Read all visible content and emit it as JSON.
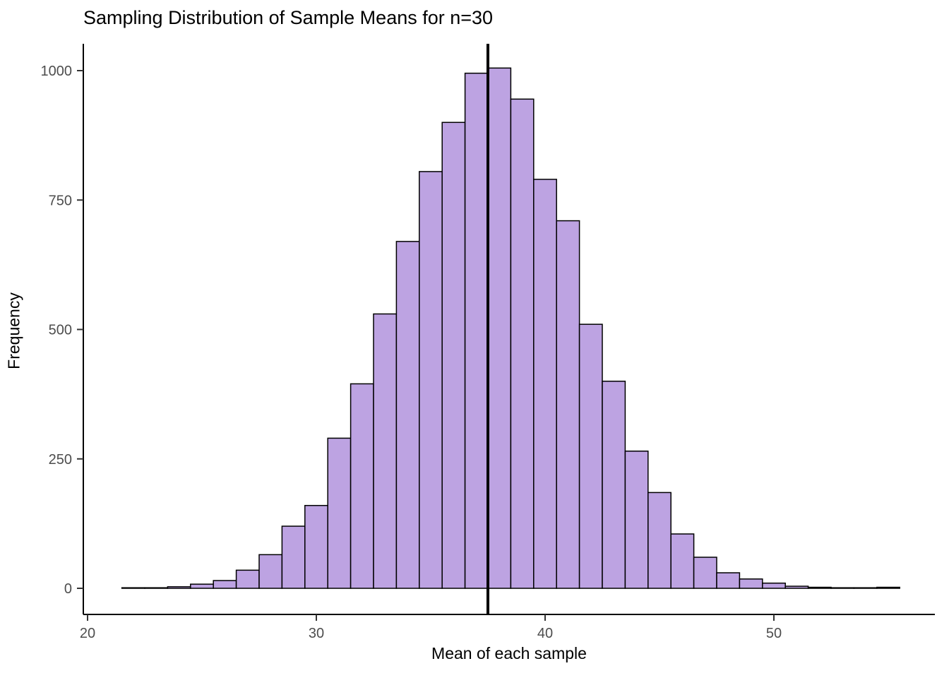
{
  "chart_data": {
    "type": "bar",
    "subtype": "histogram",
    "title": "Sampling Distribution of Sample Means for n=30",
    "xlabel": "Mean of each sample",
    "ylabel": "Frequency",
    "bin_start": 21.5,
    "bin_width": 1,
    "counts": [
      1,
      1,
      3,
      8,
      15,
      35,
      65,
      120,
      160,
      290,
      395,
      530,
      670,
      805,
      900,
      995,
      1005,
      945,
      790,
      710,
      510,
      400,
      265,
      185,
      105,
      60,
      30,
      18,
      10,
      4,
      2,
      1,
      1,
      2
    ],
    "mean_line_x": 37.5,
    "x_ticks": [
      20,
      30,
      40,
      50
    ],
    "y_ticks": [
      0,
      250,
      500,
      750,
      1000
    ],
    "xlim": [
      19.8,
      57.0
    ],
    "ylim": [
      0,
      1055
    ],
    "grid": false,
    "legend": "none",
    "bar_fill": "#bda3e2",
    "bar_stroke": "#000000",
    "mean_line_color": "#000000",
    "axis_color": "#000000",
    "tick_label_color": "#4d4d4d"
  }
}
